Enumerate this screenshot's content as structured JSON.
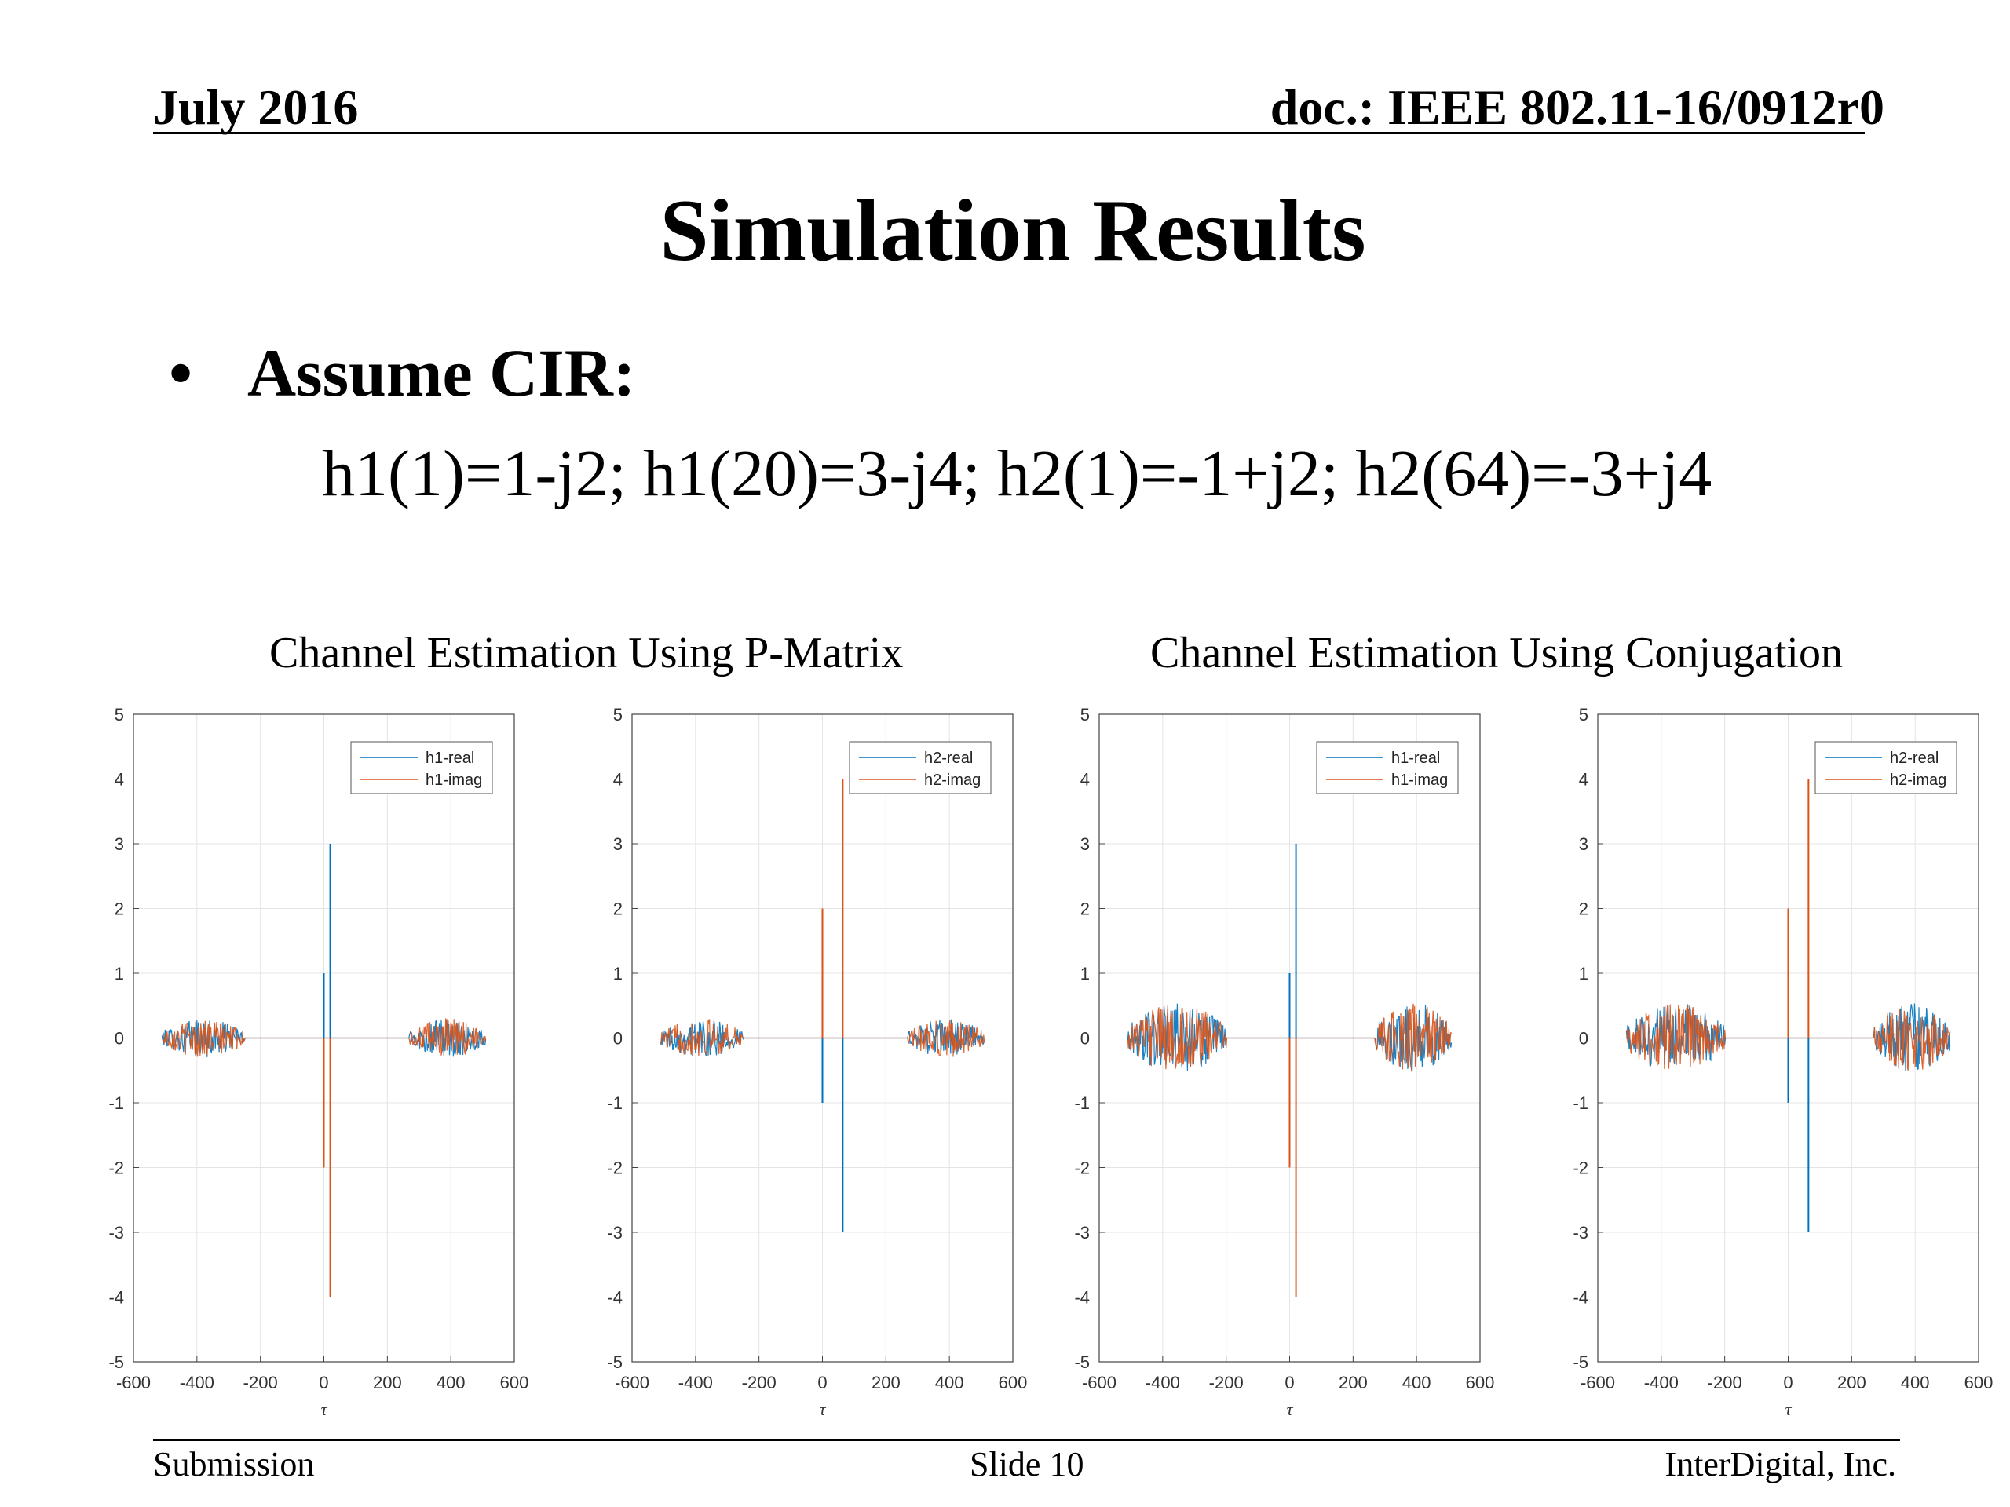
{
  "header": {
    "date": "July 2016",
    "doc": "doc.: IEEE 802.11-16/0912r0"
  },
  "slide_title": "Simulation Results",
  "bullet": {
    "symbol": "•",
    "text": "Assume CIR:"
  },
  "formula": "h1(1)=1-j2; h1(20)=3-j4; h2(1)=-1+j2; h2(64)=-3+j4",
  "group_titles": [
    "Channel Estimation Using P-Matrix",
    "Channel Estimation Using Conjugation"
  ],
  "colors": {
    "real": "#0072bd",
    "imag": "#d95319"
  },
  "chart_data": [
    {
      "type": "line",
      "xlabel": "τ",
      "xlim": [
        -600,
        600
      ],
      "ylim": [
        -5,
        5
      ],
      "xticks": [
        -600,
        -400,
        -200,
        0,
        200,
        400,
        600
      ],
      "yticks": [
        5,
        4,
        3,
        2,
        1,
        0,
        -1,
        -2,
        -3,
        -4,
        -5
      ],
      "grid": true,
      "legend_position": "top-right",
      "series": [
        {
          "name": "h1-real",
          "color": "#0072bd",
          "impulses": [
            [
              0,
              1
            ],
            [
              20,
              3
            ]
          ],
          "noise_regions": [
            [
              -510,
              -250
            ],
            [
              270,
              510
            ]
          ],
          "noise_amplitude": 0.3
        },
        {
          "name": "h1-imag",
          "color": "#d95319",
          "impulses": [
            [
              0,
              -2
            ],
            [
              20,
              -4
            ]
          ],
          "noise_regions": [
            [
              -510,
              -250
            ],
            [
              270,
              510
            ]
          ],
          "noise_amplitude": 0.3
        }
      ]
    },
    {
      "type": "line",
      "xlabel": "τ",
      "xlim": [
        -600,
        600
      ],
      "ylim": [
        -5,
        5
      ],
      "xticks": [
        -600,
        -400,
        -200,
        0,
        200,
        400,
        600
      ],
      "yticks": [
        5,
        4,
        3,
        2,
        1,
        0,
        -1,
        -2,
        -3,
        -4,
        -5
      ],
      "grid": true,
      "legend_position": "top-right",
      "series": [
        {
          "name": "h2-real",
          "color": "#0072bd",
          "impulses": [
            [
              0,
              -1
            ],
            [
              64,
              -3
            ]
          ],
          "noise_regions": [
            [
              -510,
              -250
            ],
            [
              270,
              510
            ]
          ],
          "noise_amplitude": 0.3
        },
        {
          "name": "h2-imag",
          "color": "#d95319",
          "impulses": [
            [
              0,
              2
            ],
            [
              64,
              4
            ]
          ],
          "noise_regions": [
            [
              -510,
              -250
            ],
            [
              270,
              510
            ]
          ],
          "noise_amplitude": 0.3
        }
      ]
    },
    {
      "type": "line",
      "xlabel": "τ",
      "xlim": [
        -600,
        600
      ],
      "ylim": [
        -5,
        5
      ],
      "xticks": [
        -600,
        -400,
        -200,
        0,
        200,
        400,
        600
      ],
      "yticks": [
        5,
        4,
        3,
        2,
        1,
        0,
        -1,
        -2,
        -3,
        -4,
        -5
      ],
      "grid": true,
      "legend_position": "top-right",
      "series": [
        {
          "name": "h1-real",
          "color": "#0072bd",
          "impulses": [
            [
              0,
              1
            ],
            [
              20,
              3
            ]
          ],
          "noise_regions": [
            [
              -510,
              -200
            ],
            [
              270,
              510
            ]
          ],
          "noise_amplitude": 0.55
        },
        {
          "name": "h1-imag",
          "color": "#d95319",
          "impulses": [
            [
              0,
              -2
            ],
            [
              20,
              -4
            ]
          ],
          "noise_regions": [
            [
              -510,
              -200
            ],
            [
              270,
              510
            ]
          ],
          "noise_amplitude": 0.55
        }
      ]
    },
    {
      "type": "line",
      "xlabel": "τ",
      "xlim": [
        -600,
        600
      ],
      "ylim": [
        -5,
        5
      ],
      "xticks": [
        -600,
        -400,
        -200,
        0,
        200,
        400,
        600
      ],
      "yticks": [
        5,
        4,
        3,
        2,
        1,
        0,
        -1,
        -2,
        -3,
        -4,
        -5
      ],
      "grid": true,
      "legend_position": "top-right",
      "series": [
        {
          "name": "h2-real",
          "color": "#0072bd",
          "impulses": [
            [
              0,
              -1
            ],
            [
              64,
              -3
            ]
          ],
          "noise_regions": [
            [
              -510,
              -200
            ],
            [
              270,
              510
            ]
          ],
          "noise_amplitude": 0.55
        },
        {
          "name": "h2-imag",
          "color": "#d95319",
          "impulses": [
            [
              0,
              2
            ],
            [
              64,
              4
            ]
          ],
          "noise_regions": [
            [
              -510,
              -200
            ],
            [
              270,
              510
            ]
          ],
          "noise_amplitude": 0.55
        }
      ]
    }
  ],
  "footer": {
    "left": "Submission",
    "center": "Slide 10",
    "right": "InterDigital, Inc."
  }
}
